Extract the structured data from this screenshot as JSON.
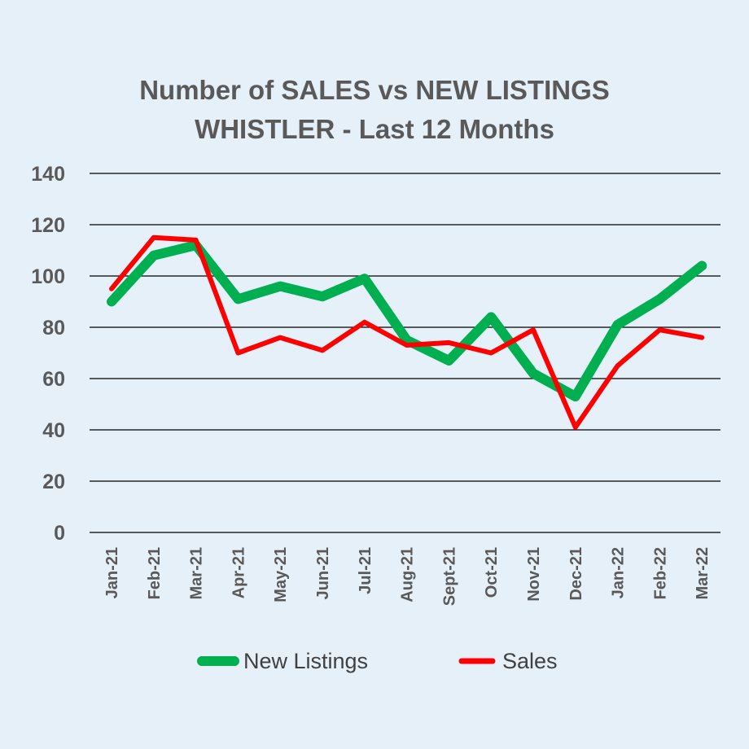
{
  "chart_data": {
    "type": "line",
    "title": "Number of SALES vs NEW LISTINGS",
    "subtitle": "WHISTLER - Last 12 Months",
    "categories": [
      "Jan-21",
      "Feb-21",
      "Mar-21",
      "Apr-21",
      "May-21",
      "Jun-21",
      "Jul-21",
      "Aug-21",
      "Sept-21",
      "Oct-21",
      "Nov-21",
      "Dec-21",
      "Jan-22",
      "Feb-22",
      "Mar-22"
    ],
    "yticks": [
      "0",
      "20",
      "40",
      "60",
      "80",
      "100",
      "120",
      "140"
    ],
    "ylim": [
      0,
      140
    ],
    "grid": true,
    "legend_placement": "bottom",
    "series": [
      {
        "name": "New Listings",
        "color": "#00b050",
        "values": [
          90,
          108,
          112,
          91,
          96,
          92,
          99,
          75,
          67,
          84,
          62,
          53,
          81,
          91,
          104
        ]
      },
      {
        "name": "Sales",
        "color": "#ff0000",
        "values": [
          95,
          115,
          114,
          70,
          76,
          71,
          82,
          73,
          74,
          70,
          79,
          41,
          65,
          79,
          76
        ]
      }
    ]
  }
}
